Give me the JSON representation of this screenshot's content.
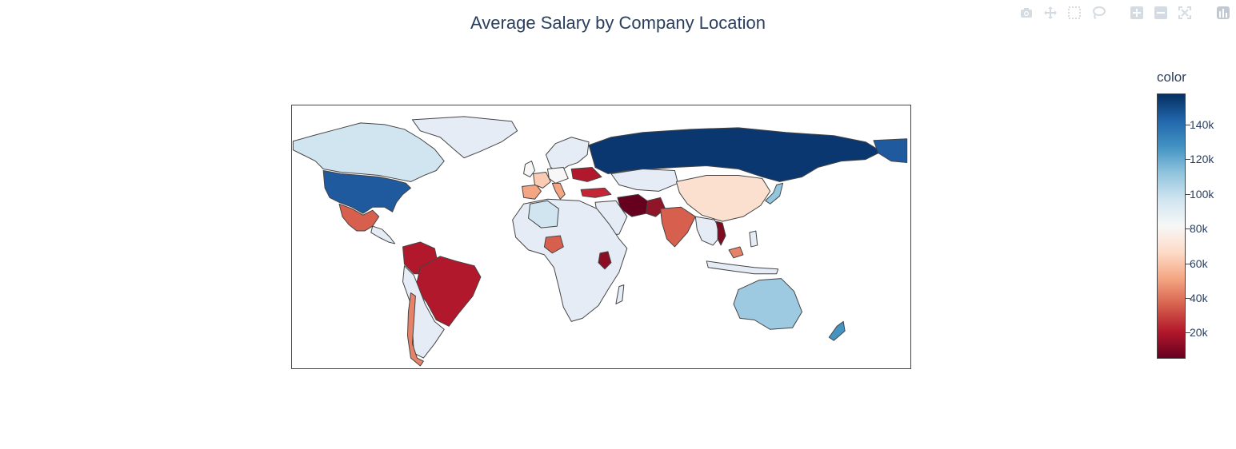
{
  "title": "Average Salary by Company Location",
  "toolbar": {
    "items": [
      {
        "icon": "camera-icon",
        "tooltip": "Download plot as a png"
      },
      {
        "icon": "pan-icon",
        "tooltip": "Pan"
      },
      {
        "icon": "box-select-icon",
        "tooltip": "Box Select"
      },
      {
        "icon": "lasso-select-icon",
        "tooltip": "Lasso Select"
      },
      {
        "icon": "zoom-in-icon",
        "tooltip": "Zoom in"
      },
      {
        "icon": "zoom-out-icon",
        "tooltip": "Zoom out"
      },
      {
        "icon": "reset-icon",
        "tooltip": "Reset"
      },
      {
        "icon": "plotly-logo-icon",
        "tooltip": "Produced with Plotly"
      }
    ]
  },
  "colorbar": {
    "title": "color",
    "colorscale": [
      "#67001f",
      "#b2182b",
      "#d6604d",
      "#f4a582",
      "#fddbc7",
      "#f7f7f7",
      "#d1e5f0",
      "#92c5de",
      "#4393c3",
      "#2166ac",
      "#053061"
    ],
    "range": [
      5000,
      158000
    ],
    "ticks": [
      {
        "value": 20000,
        "label": "20k"
      },
      {
        "value": 40000,
        "label": "40k"
      },
      {
        "value": 60000,
        "label": "60k"
      },
      {
        "value": 80000,
        "label": "80k"
      },
      {
        "value": 100000,
        "label": "100k"
      },
      {
        "value": 120000,
        "label": "120k"
      },
      {
        "value": 140000,
        "label": "140k"
      }
    ]
  },
  "map": {
    "projection": "equirectangular",
    "ocean_color": "#ffffff",
    "outline_color": "#444444",
    "no_data_color": "#e5ecf6"
  },
  "chart_data": {
    "type": "choropleth",
    "title": "Average Salary by Company Location",
    "color_label": "color",
    "locations": [
      {
        "country": "United States",
        "value": 145000
      },
      {
        "country": "Russia",
        "value": 157000
      },
      {
        "country": "Canada",
        "value": 100000
      },
      {
        "country": "Australia",
        "value": 110000
      },
      {
        "country": "New Zealand",
        "value": 125000
      },
      {
        "country": "Japan",
        "value": 115000
      },
      {
        "country": "China",
        "value": 70000
      },
      {
        "country": "India",
        "value": 35000
      },
      {
        "country": "Brazil",
        "value": 20000
      },
      {
        "country": "Mexico",
        "value": 35000
      },
      {
        "country": "Chile",
        "value": 40000
      },
      {
        "country": "Colombia",
        "value": 25000
      },
      {
        "country": "Nigeria",
        "value": 35000
      },
      {
        "country": "Kenya",
        "value": 10000
      },
      {
        "country": "Algeria",
        "value": 100000
      },
      {
        "country": "Iran",
        "value": 8000
      },
      {
        "country": "Pakistan",
        "value": 15000
      },
      {
        "country": "Turkey",
        "value": 20000
      },
      {
        "country": "Ukraine",
        "value": 15000
      },
      {
        "country": "Vietnam",
        "value": 10000
      },
      {
        "country": "Spain",
        "value": 55000
      },
      {
        "country": "France",
        "value": 65000
      },
      {
        "country": "Italy",
        "value": 50000
      },
      {
        "country": "Germany",
        "value": 85000
      },
      {
        "country": "United Kingdom",
        "value": 80000
      },
      {
        "country": "Philippines",
        "value": 40000
      },
      {
        "country": "Malaysia",
        "value": 45000
      },
      {
        "country": "Kazakhstan",
        "value": 90000
      }
    ]
  }
}
